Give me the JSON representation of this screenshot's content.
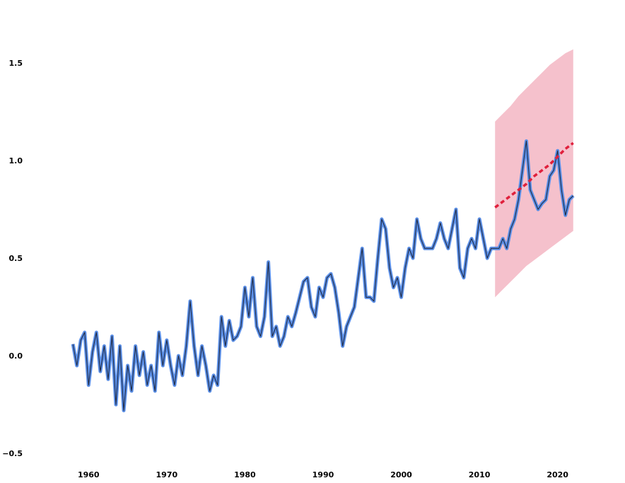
{
  "colors": {
    "observed_outer": "#5b8fe6",
    "observed_inner": "#1a2238",
    "forecast_line": "#e0203c",
    "forecast_band": "#f0a0b0"
  },
  "chart_data": {
    "type": "line",
    "title": "",
    "xlabel": "",
    "ylabel": "",
    "xlim": [
      1955,
      2026
    ],
    "ylim": [
      -0.55,
      1.75
    ],
    "x_ticks": [
      1960,
      1970,
      1980,
      1990,
      2000,
      2010,
      2020
    ],
    "x_tick_labels": [
      "1960",
      "1970",
      "1980",
      "1990",
      "2000",
      "2010",
      "2020"
    ],
    "y_ticks": [
      -0.5,
      0.0,
      0.5,
      1.0,
      1.5
    ],
    "y_tick_labels": [
      "−0.5",
      "0.0",
      "0.5",
      "1.0",
      "1.5"
    ],
    "grid": false,
    "series": [
      {
        "kind": "observed",
        "x": [
          1958.0,
          1958.5,
          1959.0,
          1959.5,
          1960.0,
          1960.5,
          1961.0,
          1961.5,
          1962.0,
          1962.5,
          1963.0,
          1963.5,
          1964.0,
          1964.5,
          1965.0,
          1965.5,
          1966.0,
          1966.5,
          1967.0,
          1967.5,
          1968.0,
          1968.5,
          1969.0,
          1969.5,
          1970.0,
          1970.5,
          1971.0,
          1971.5,
          1972.0,
          1972.5,
          1973.0,
          1973.5,
          1974.0,
          1974.5,
          1975.0,
          1975.5,
          1976.0,
          1976.5,
          1977.0,
          1977.5,
          1978.0,
          1978.5,
          1979.0,
          1979.5,
          1980.0,
          1980.5,
          1981.0,
          1981.5,
          1982.0,
          1982.5,
          1983.0,
          1983.5,
          1984.0,
          1984.5,
          1985.0,
          1985.5,
          1986.0,
          1986.5,
          1987.0,
          1987.5,
          1988.0,
          1988.5,
          1989.0,
          1989.5,
          1990.0,
          1990.5,
          1991.0,
          1991.5,
          1992.0,
          1992.5,
          1993.0,
          1993.5,
          1994.0,
          1994.5,
          1995.0,
          1995.5,
          1996.0,
          1996.5,
          1997.0,
          1997.5,
          1998.0,
          1998.5,
          1999.0,
          1999.5,
          2000.0,
          2000.5,
          2001.0,
          2001.5,
          2002.0,
          2002.5,
          2003.0,
          2003.5,
          2004.0,
          2004.5,
          2005.0,
          2005.5,
          2006.0,
          2006.5,
          2007.0,
          2007.5,
          2008.0,
          2008.5,
          2009.0,
          2009.5,
          2010.0,
          2010.5,
          2011.0,
          2011.5,
          2012.0,
          2012.5,
          2013.0,
          2013.5,
          2014.0,
          2014.5,
          2015.0,
          2015.5,
          2016.0,
          2016.5,
          2017.0,
          2017.5,
          2018.0,
          2018.5,
          2019.0,
          2019.5,
          2020.0,
          2020.5,
          2021.0,
          2021.5,
          2022.0
        ],
        "values": [
          0.06,
          -0.05,
          0.08,
          0.12,
          -0.15,
          0.02,
          0.12,
          -0.08,
          0.05,
          -0.12,
          0.1,
          -0.25,
          0.05,
          -0.28,
          -0.05,
          -0.18,
          0.05,
          -0.1,
          0.02,
          -0.15,
          -0.05,
          -0.18,
          0.12,
          -0.05,
          0.08,
          -0.05,
          -0.15,
          0.0,
          -0.1,
          0.05,
          0.28,
          0.05,
          -0.1,
          0.05,
          -0.05,
          -0.18,
          -0.1,
          -0.15,
          0.2,
          0.05,
          0.18,
          0.08,
          0.1,
          0.15,
          0.35,
          0.2,
          0.4,
          0.15,
          0.1,
          0.2,
          0.48,
          0.1,
          0.15,
          0.05,
          0.1,
          0.2,
          0.15,
          0.22,
          0.3,
          0.38,
          0.4,
          0.25,
          0.2,
          0.35,
          0.3,
          0.4,
          0.42,
          0.35,
          0.22,
          0.05,
          0.15,
          0.2,
          0.25,
          0.4,
          0.55,
          0.3,
          0.3,
          0.28,
          0.5,
          0.7,
          0.65,
          0.45,
          0.35,
          0.4,
          0.3,
          0.45,
          0.55,
          0.5,
          0.7,
          0.6,
          0.55,
          0.55,
          0.55,
          0.6,
          0.68,
          0.6,
          0.55,
          0.65,
          0.75,
          0.45,
          0.4,
          0.55,
          0.6,
          0.55,
          0.7,
          0.6,
          0.5,
          0.55,
          0.55,
          0.55,
          0.6,
          0.55,
          0.65,
          0.7,
          0.8,
          0.95,
          1.1,
          0.85,
          0.8,
          0.75,
          0.78,
          0.8,
          0.92,
          0.95,
          1.05,
          0.85,
          0.72,
          0.8,
          0.82
        ]
      },
      {
        "kind": "forecast",
        "x": [
          2012.0,
          2013.0,
          2014.0,
          2015.0,
          2016.0,
          2017.0,
          2018.0,
          2019.0,
          2020.0,
          2021.0,
          2022.0
        ],
        "values": [
          0.76,
          0.79,
          0.82,
          0.85,
          0.88,
          0.92,
          0.95,
          0.98,
          1.02,
          1.06,
          1.09
        ],
        "lower": [
          0.3,
          0.34,
          0.38,
          0.42,
          0.46,
          0.49,
          0.52,
          0.55,
          0.58,
          0.61,
          0.64
        ],
        "upper": [
          1.2,
          1.24,
          1.28,
          1.33,
          1.37,
          1.41,
          1.45,
          1.49,
          1.52,
          1.55,
          1.57
        ]
      }
    ]
  }
}
